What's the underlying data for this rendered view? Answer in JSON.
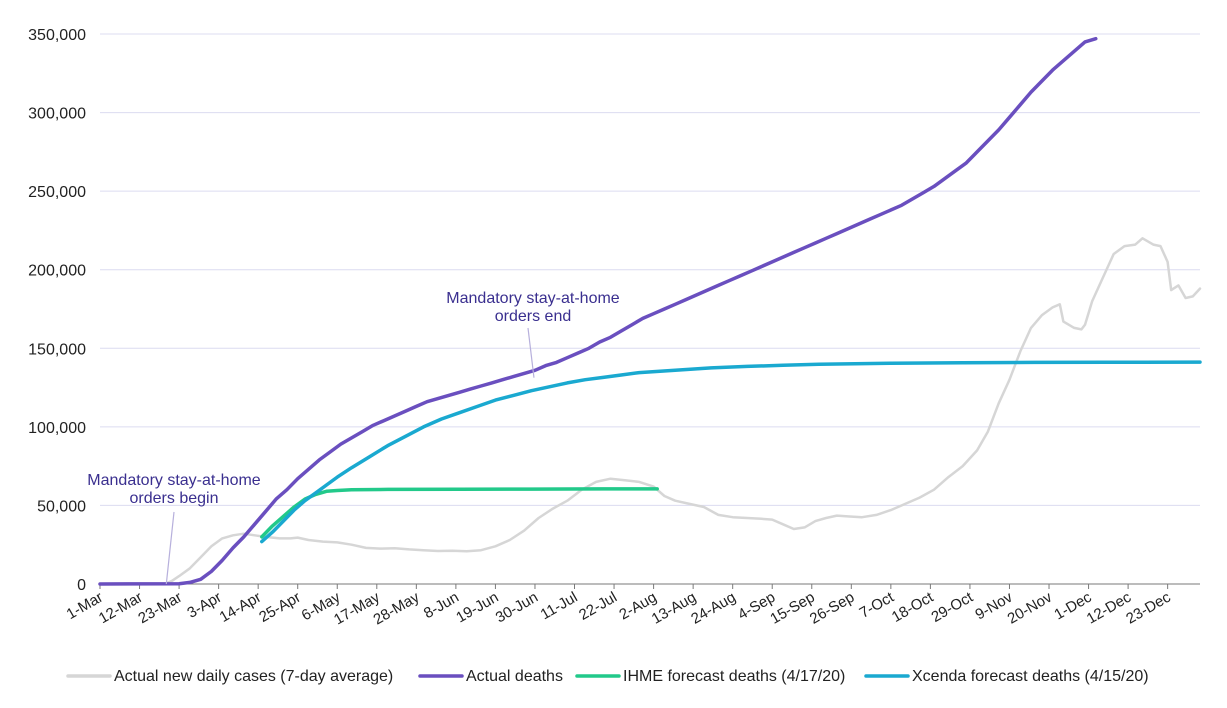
{
  "chart_data": {
    "type": "line",
    "title": "",
    "xlabel": "",
    "ylabel": "",
    "ylim": [
      0,
      350000
    ],
    "yticks": [
      0,
      50000,
      100000,
      150000,
      200000,
      250000,
      300000,
      350000
    ],
    "ytick_labels": [
      "0",
      "50,000",
      "100,000",
      "150,000",
      "200,000",
      "250,000",
      "300,000",
      "350,000"
    ],
    "x_range_days": [
      0,
      306
    ],
    "xticks": [
      {
        "day": 0,
        "label": "1-Mar"
      },
      {
        "day": 11,
        "label": "12-Mar"
      },
      {
        "day": 22,
        "label": "23-Mar"
      },
      {
        "day": 33,
        "label": "3-Apr"
      },
      {
        "day": 44,
        "label": "14-Apr"
      },
      {
        "day": 55,
        "label": "25-Apr"
      },
      {
        "day": 66,
        "label": "6-May"
      },
      {
        "day": 77,
        "label": "17-May"
      },
      {
        "day": 88,
        "label": "28-May"
      },
      {
        "day": 99,
        "label": "8-Jun"
      },
      {
        "day": 110,
        "label": "19-Jun"
      },
      {
        "day": 121,
        "label": "30-Jun"
      },
      {
        "day": 132,
        "label": "11-Jul"
      },
      {
        "day": 143,
        "label": "22-Jul"
      },
      {
        "day": 154,
        "label": "2-Aug"
      },
      {
        "day": 165,
        "label": "13-Aug"
      },
      {
        "day": 176,
        "label": "24-Aug"
      },
      {
        "day": 187,
        "label": "4-Sep"
      },
      {
        "day": 198,
        "label": "15-Sep"
      },
      {
        "day": 209,
        "label": "26-Sep"
      },
      {
        "day": 220,
        "label": "7-Oct"
      },
      {
        "day": 231,
        "label": "18-Oct"
      },
      {
        "day": 242,
        "label": "29-Oct"
      },
      {
        "day": 253,
        "label": "9-Nov"
      },
      {
        "day": 264,
        "label": "20-Nov"
      },
      {
        "day": 275,
        "label": "1-Dec"
      },
      {
        "day": 286,
        "label": "12-Dec"
      },
      {
        "day": 297,
        "label": "23-Dec"
      }
    ],
    "grid": true,
    "legend_position": "bottom",
    "series": [
      {
        "name": "Actual new daily cases (7-day average)",
        "color": "#d6d6d6",
        "points": [
          [
            0,
            0
          ],
          [
            18,
            0
          ],
          [
            20,
            2000
          ],
          [
            22,
            5000
          ],
          [
            25,
            10000
          ],
          [
            28,
            17000
          ],
          [
            31,
            24000
          ],
          [
            34,
            29000
          ],
          [
            37,
            31000
          ],
          [
            40,
            32000
          ],
          [
            43,
            31000
          ],
          [
            46,
            30000
          ],
          [
            50,
            29000
          ],
          [
            53,
            29000
          ],
          [
            55,
            29500
          ],
          [
            58,
            28000
          ],
          [
            62,
            27000
          ],
          [
            66,
            26500
          ],
          [
            70,
            25000
          ],
          [
            74,
            23000
          ],
          [
            78,
            22500
          ],
          [
            82,
            22800
          ],
          [
            86,
            22000
          ],
          [
            90,
            21500
          ],
          [
            94,
            21000
          ],
          [
            98,
            21200
          ],
          [
            102,
            20800
          ],
          [
            106,
            21500
          ],
          [
            110,
            24000
          ],
          [
            114,
            28000
          ],
          [
            118,
            34000
          ],
          [
            122,
            42000
          ],
          [
            126,
            48000
          ],
          [
            130,
            53000
          ],
          [
            134,
            60000
          ],
          [
            138,
            65000
          ],
          [
            142,
            67000
          ],
          [
            146,
            66000
          ],
          [
            150,
            65000
          ],
          [
            154,
            62000
          ],
          [
            157,
            56000
          ],
          [
            160,
            53000
          ],
          [
            164,
            51000
          ],
          [
            168,
            49000
          ],
          [
            172,
            44000
          ],
          [
            176,
            42500
          ],
          [
            180,
            42000
          ],
          [
            184,
            41500
          ],
          [
            187,
            41000
          ],
          [
            190,
            38000
          ],
          [
            193,
            35000
          ],
          [
            196,
            36000
          ],
          [
            199,
            40000
          ],
          [
            202,
            42000
          ],
          [
            205,
            43500
          ],
          [
            208,
            43000
          ],
          [
            212,
            42500
          ],
          [
            216,
            44000
          ],
          [
            220,
            47000
          ],
          [
            224,
            51000
          ],
          [
            228,
            55000
          ],
          [
            232,
            60000
          ],
          [
            236,
            68000
          ],
          [
            240,
            75000
          ],
          [
            244,
            85000
          ],
          [
            247,
            97000
          ],
          [
            250,
            115000
          ],
          [
            253,
            130000
          ],
          [
            256,
            148000
          ],
          [
            259,
            163000
          ],
          [
            262,
            171000
          ],
          [
            265,
            176000
          ],
          [
            267,
            178000
          ],
          [
            268,
            167000
          ],
          [
            271,
            163000
          ],
          [
            273,
            162000
          ],
          [
            274,
            165000
          ],
          [
            276,
            180000
          ],
          [
            279,
            195000
          ],
          [
            282,
            210000
          ],
          [
            285,
            215000
          ],
          [
            288,
            216000
          ],
          [
            290,
            220000
          ],
          [
            293,
            216000
          ],
          [
            295,
            215000
          ],
          [
            297,
            205000
          ],
          [
            298,
            187000
          ],
          [
            300,
            190000
          ],
          [
            302,
            182000
          ],
          [
            304,
            183000
          ],
          [
            306,
            188000
          ]
        ]
      },
      {
        "name": "Actual deaths",
        "color": "#6a4fbf",
        "points": [
          [
            0,
            0
          ],
          [
            22,
            200
          ],
          [
            25,
            1000
          ],
          [
            28,
            3000
          ],
          [
            31,
            8000
          ],
          [
            34,
            15000
          ],
          [
            37,
            23000
          ],
          [
            40,
            30000
          ],
          [
            43,
            38000
          ],
          [
            46,
            46000
          ],
          [
            49,
            54000
          ],
          [
            52,
            60000
          ],
          [
            55,
            67000
          ],
          [
            58,
            73000
          ],
          [
            61,
            79000
          ],
          [
            64,
            84000
          ],
          [
            67,
            89000
          ],
          [
            70,
            93000
          ],
          [
            73,
            97000
          ],
          [
            76,
            101000
          ],
          [
            79,
            104000
          ],
          [
            82,
            107000
          ],
          [
            85,
            110000
          ],
          [
            88,
            113000
          ],
          [
            91,
            116000
          ],
          [
            94,
            118000
          ],
          [
            97,
            120000
          ],
          [
            100,
            122000
          ],
          [
            103,
            124000
          ],
          [
            106,
            126000
          ],
          [
            109,
            128000
          ],
          [
            112,
            130000
          ],
          [
            115,
            132000
          ],
          [
            118,
            134000
          ],
          [
            121,
            136000
          ],
          [
            124,
            139000
          ],
          [
            127,
            141000
          ],
          [
            130,
            144000
          ],
          [
            133,
            147000
          ],
          [
            136,
            150000
          ],
          [
            139,
            154000
          ],
          [
            142,
            157000
          ],
          [
            145,
            161000
          ],
          [
            148,
            165000
          ],
          [
            151,
            169000
          ],
          [
            154,
            172000
          ],
          [
            157,
            175000
          ],
          [
            160,
            178000
          ],
          [
            163,
            181000
          ],
          [
            166,
            184000
          ],
          [
            169,
            187000
          ],
          [
            172,
            190000
          ],
          [
            175,
            193000
          ],
          [
            178,
            196000
          ],
          [
            181,
            199000
          ],
          [
            184,
            202000
          ],
          [
            187,
            205000
          ],
          [
            190,
            208000
          ],
          [
            193,
            211000
          ],
          [
            196,
            214000
          ],
          [
            199,
            217000
          ],
          [
            202,
            220000
          ],
          [
            205,
            223000
          ],
          [
            208,
            226000
          ],
          [
            211,
            229000
          ],
          [
            214,
            232000
          ],
          [
            217,
            235000
          ],
          [
            220,
            238000
          ],
          [
            223,
            241000
          ],
          [
            226,
            245000
          ],
          [
            229,
            249000
          ],
          [
            232,
            253000
          ],
          [
            235,
            258000
          ],
          [
            238,
            263000
          ],
          [
            241,
            268000
          ],
          [
            244,
            275000
          ],
          [
            247,
            282000
          ],
          [
            250,
            289000
          ],
          [
            253,
            297000
          ],
          [
            256,
            305000
          ],
          [
            259,
            313000
          ],
          [
            262,
            320000
          ],
          [
            265,
            327000
          ],
          [
            268,
            333000
          ],
          [
            271,
            339000
          ],
          [
            274,
            345000
          ],
          [
            277,
            347000
          ]
        ]
      },
      {
        "name": "IHME forecast deaths (4/17/20)",
        "color": "#22c98a",
        "points": [
          [
            45,
            30000
          ],
          [
            48,
            37000
          ],
          [
            51,
            43000
          ],
          [
            54,
            49000
          ],
          [
            57,
            54000
          ],
          [
            60,
            57000
          ],
          [
            63,
            59000
          ],
          [
            66,
            59500
          ],
          [
            70,
            60000
          ],
          [
            80,
            60200
          ],
          [
            100,
            60300
          ],
          [
            120,
            60400
          ],
          [
            140,
            60500
          ],
          [
            155,
            60500
          ]
        ]
      },
      {
        "name": "Xcenda forecast deaths (4/15/20)",
        "color": "#1aa9d0",
        "points": [
          [
            45,
            27000
          ],
          [
            48,
            33000
          ],
          [
            51,
            40000
          ],
          [
            54,
            47000
          ],
          [
            57,
            53000
          ],
          [
            60,
            58000
          ],
          [
            63,
            63000
          ],
          [
            66,
            68000
          ],
          [
            70,
            74000
          ],
          [
            75,
            81000
          ],
          [
            80,
            88000
          ],
          [
            85,
            94000
          ],
          [
            90,
            100000
          ],
          [
            95,
            105000
          ],
          [
            100,
            109000
          ],
          [
            105,
            113000
          ],
          [
            110,
            117000
          ],
          [
            115,
            120000
          ],
          [
            120,
            123000
          ],
          [
            125,
            125500
          ],
          [
            130,
            128000
          ],
          [
            135,
            130000
          ],
          [
            140,
            131500
          ],
          [
            145,
            133000
          ],
          [
            150,
            134500
          ],
          [
            160,
            136000
          ],
          [
            170,
            137500
          ],
          [
            180,
            138500
          ],
          [
            190,
            139200
          ],
          [
            200,
            139800
          ],
          [
            210,
            140200
          ],
          [
            220,
            140500
          ],
          [
            240,
            140800
          ],
          [
            260,
            141000
          ],
          [
            280,
            141100
          ],
          [
            306,
            141200
          ]
        ]
      }
    ],
    "annotations": [
      {
        "lines": [
          "Mandatory stay-at-home",
          "orders begin"
        ],
        "day": 19,
        "value": 0
      },
      {
        "lines": [
          "Mandatory stay-at-home",
          "orders end"
        ],
        "day": 121,
        "value": 130000
      }
    ]
  }
}
